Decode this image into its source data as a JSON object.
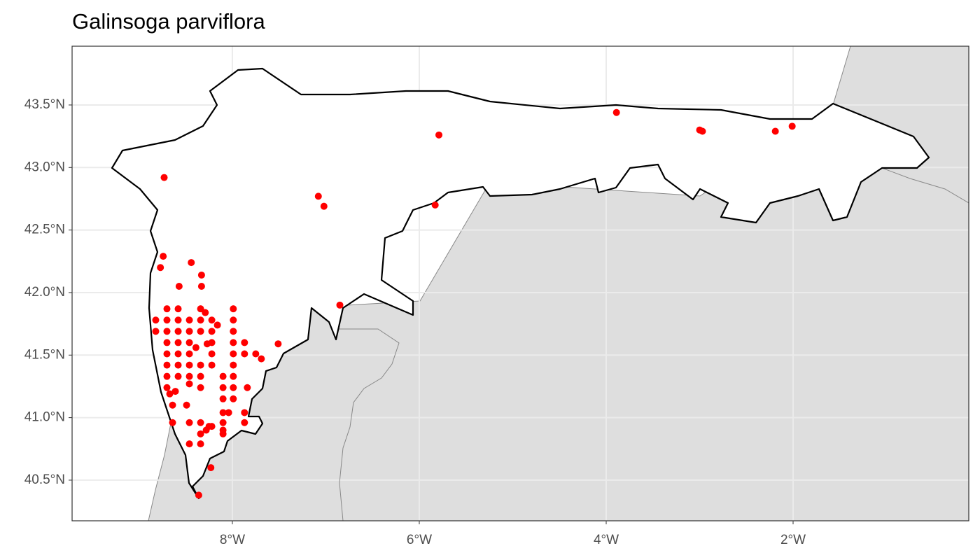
{
  "chart_data": {
    "type": "scatter",
    "title": "Galinsoga parviflora",
    "color": "#ff0000",
    "grid": true,
    "xlim": [
      -9.715,
      -0.12
    ],
    "ylim": [
      40.175,
      43.97
    ],
    "xticks": [
      {
        "value": -8,
        "label": "8°W"
      },
      {
        "value": -6,
        "label": "6°W"
      },
      {
        "value": -4,
        "label": "4°W"
      },
      {
        "value": -2,
        "label": "2°W"
      }
    ],
    "yticks": [
      {
        "value": 40.5,
        "label": "40.5°N"
      },
      {
        "value": 41.0,
        "label": "41.0°N"
      },
      {
        "value": 41.5,
        "label": "41.5°N"
      },
      {
        "value": 42.0,
        "label": "42.0°N"
      },
      {
        "value": 42.5,
        "label": "42.5°N"
      },
      {
        "value": 43.0,
        "label": "43.0°N"
      },
      {
        "value": 43.5,
        "label": "43.5°N"
      }
    ],
    "x": [
      -8.73,
      -7.08,
      -7.02,
      -5.79,
      -5.83,
      -3.89,
      -3.0,
      -2.97,
      -2.19,
      -2.01,
      -6.85,
      -8.74,
      -8.77,
      -8.44,
      -8.33,
      -8.33,
      -8.57,
      -7.51,
      -7.75,
      -7.69,
      -8.29,
      -8.16,
      -8.27,
      -8.39,
      -8.46,
      -7.84,
      -8.04,
      -8.67,
      -8.61,
      -8.49,
      -8.64,
      -8.28,
      -8.25,
      -8.22,
      -8.23,
      -8.36,
      -8.7,
      -8.58,
      -8.34,
      -7.99,
      -8.82,
      -8.7,
      -8.58,
      -8.46,
      -8.34,
      -8.22,
      -7.99,
      -8.82,
      -8.7,
      -8.58,
      -8.46,
      -8.34,
      -8.22,
      -7.99,
      -8.7,
      -8.58,
      -8.46,
      -8.22,
      -7.99,
      -7.87,
      -8.7,
      -8.58,
      -8.46,
      -8.22,
      -7.99,
      -7.87,
      -8.7,
      -8.58,
      -8.46,
      -8.34,
      -8.22,
      -7.99,
      -8.7,
      -8.58,
      -8.46,
      -8.34,
      -8.1,
      -7.99,
      -8.7,
      -8.34,
      -8.1,
      -7.99,
      -8.1,
      -7.99,
      -8.1,
      -7.87,
      -8.64,
      -8.46,
      -8.34,
      -8.1,
      -7.87,
      -8.1,
      -8.34,
      -8.1,
      -8.46,
      -8.34
    ],
    "values": [
      42.92,
      42.77,
      42.69,
      43.26,
      42.7,
      43.44,
      43.3,
      43.29,
      43.29,
      43.33,
      41.9,
      42.29,
      42.2,
      42.24,
      42.14,
      42.05,
      42.05,
      41.59,
      41.51,
      41.47,
      41.84,
      41.74,
      41.59,
      41.56,
      41.27,
      41.24,
      41.04,
      41.19,
      41.21,
      41.1,
      41.1,
      40.9,
      40.93,
      40.93,
      40.6,
      40.38,
      41.87,
      41.87,
      41.87,
      41.87,
      41.78,
      41.78,
      41.78,
      41.78,
      41.78,
      41.78,
      41.78,
      41.69,
      41.69,
      41.69,
      41.69,
      41.69,
      41.69,
      41.69,
      41.6,
      41.6,
      41.6,
      41.6,
      41.6,
      41.6,
      41.51,
      41.51,
      41.51,
      41.51,
      41.51,
      41.51,
      41.42,
      41.42,
      41.42,
      41.42,
      41.42,
      41.42,
      41.33,
      41.33,
      41.33,
      41.33,
      41.33,
      41.33,
      41.24,
      41.24,
      41.24,
      41.24,
      41.15,
      41.15,
      41.04,
      41.04,
      40.96,
      40.96,
      40.96,
      40.96,
      40.96,
      40.9,
      40.87,
      40.87,
      40.79,
      40.79
    ]
  }
}
